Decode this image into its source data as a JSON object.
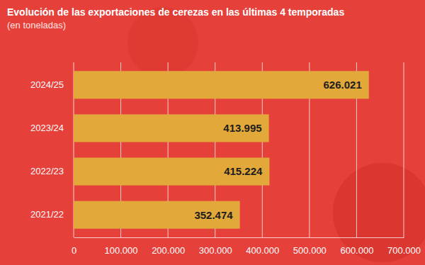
{
  "chart_data": {
    "type": "bar",
    "orientation": "horizontal",
    "title": "Evolución de las exportaciones de cerezas en las últimas 4 temporadas",
    "subtitle": "(en toneladas)",
    "categories": [
      "2024/25",
      "2023/24",
      "2022/23",
      "2021/22"
    ],
    "values": [
      626021,
      413995,
      415224,
      352474
    ],
    "value_labels": [
      "626.021",
      "413.995",
      "415.224",
      "352.474"
    ],
    "data_labels": true,
    "color": "#e2a83a",
    "xlim": [
      0,
      700000
    ],
    "xticks": [
      0,
      {
        "value": 100000,
        "label": "100.000"
      },
      {
        "value": 200000,
        "label": "200.000"
      },
      {
        "value": 300000,
        "label": "300.000"
      },
      {
        "value": 400000,
        "label": "400.000"
      },
      {
        "value": 500000,
        "label": "500.000"
      },
      {
        "value": 600000,
        "label": "600.000"
      },
      {
        "value": 700000,
        "label": "700.000"
      }
    ],
    "grid": true
  }
}
